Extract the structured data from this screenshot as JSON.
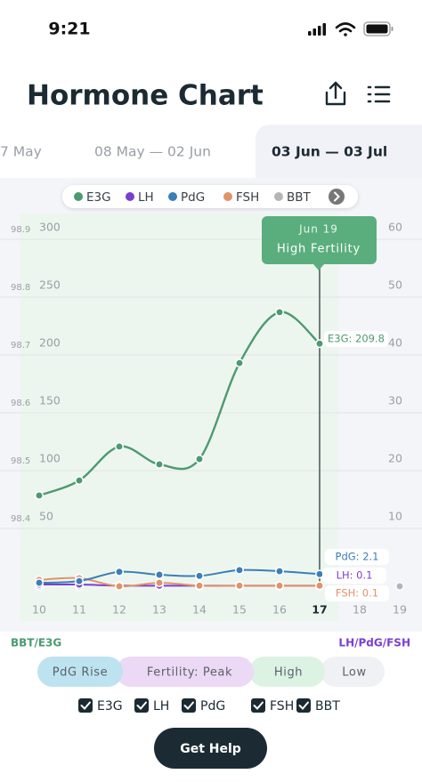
{
  "status_bar": {
    "time": "9:21"
  },
  "header": {
    "title": "Hormone Chart"
  },
  "tabs": [
    "7 May",
    "08 May — 02 Jun",
    "03 Jun — 03 Jul"
  ],
  "selected_tab": 2,
  "legend": [
    "E3G",
    "LH",
    "PdG",
    "FSH",
    "BBT"
  ],
  "chart_data": {
    "type": "line",
    "categories": [
      "10",
      "11",
      "12",
      "13",
      "14",
      "15",
      "16",
      "17",
      "18",
      "19"
    ],
    "series": [
      {
        "name": "E3G",
        "color": "#4c9a70",
        "values": [
          78.5,
          91.5,
          120.8,
          105.4,
          110,
          193,
          237,
          209.8,
          null,
          null
        ]
      },
      {
        "name": "LH",
        "color": "#7b3fd0",
        "axis": "y2",
        "values": [
          0.3,
          0.3,
          0.1,
          0.1,
          0.1,
          0.1,
          0.1,
          0.1,
          null,
          null
        ]
      },
      {
        "name": "PdG",
        "color": "#3a7fb8",
        "axis": "y2",
        "values": [
          0.6,
          0.9,
          2.5,
          2.0,
          1.8,
          2.8,
          2.6,
          2.1,
          null,
          null
        ]
      },
      {
        "name": "FSH",
        "color": "#e0936a",
        "axis": "y2",
        "values": [
          1.1,
          1.4,
          0,
          0.6,
          0.1,
          0.1,
          0.1,
          0.1,
          null,
          null
        ]
      },
      {
        "name": "BBT",
        "color": "#b5b5b5",
        "axis": "y3",
        "type": "scatter",
        "values": [
          98.3,
          98.3,
          98.3,
          98.3,
          98.3,
          98.3,
          98.3,
          98.3,
          null,
          98.3
        ]
      }
    ],
    "ylim": [
      0,
      300
    ],
    "yticks": [
      50,
      100,
      150,
      200,
      250,
      300
    ],
    "y2lim": [
      0,
      60
    ],
    "y2ticks": [
      10,
      20,
      30,
      40,
      50,
      60
    ],
    "y3lim": [
      98.3,
      98.9
    ],
    "y3ticks": [
      98.4,
      98.5,
      98.6,
      98.7,
      98.8,
      98.9
    ],
    "grid": true,
    "selected": 7,
    "tooltip": {
      "title": "Jun 19",
      "label": "High Fertility"
    },
    "annotations": [
      "E3G: 209.8",
      "PdG: 2.1",
      "LH: 0.1",
      "FSH: 0.1"
    ],
    "y_label": "BBT/E3G",
    "y2_label": "LH/PdG/FSH"
  },
  "phases": [
    {
      "label": "PdG Rise",
      "color": "#bde3f0"
    },
    {
      "label": "Fertility: Peak",
      "color": "#ecd9f5"
    },
    {
      "label": "High",
      "color": "#dcf2e3"
    },
    {
      "label": "Low",
      "color": "#f0f1f4"
    }
  ],
  "filters": [
    "E3G",
    "LH",
    "PdG",
    "FSH",
    "BBT"
  ],
  "button": "Get Help"
}
